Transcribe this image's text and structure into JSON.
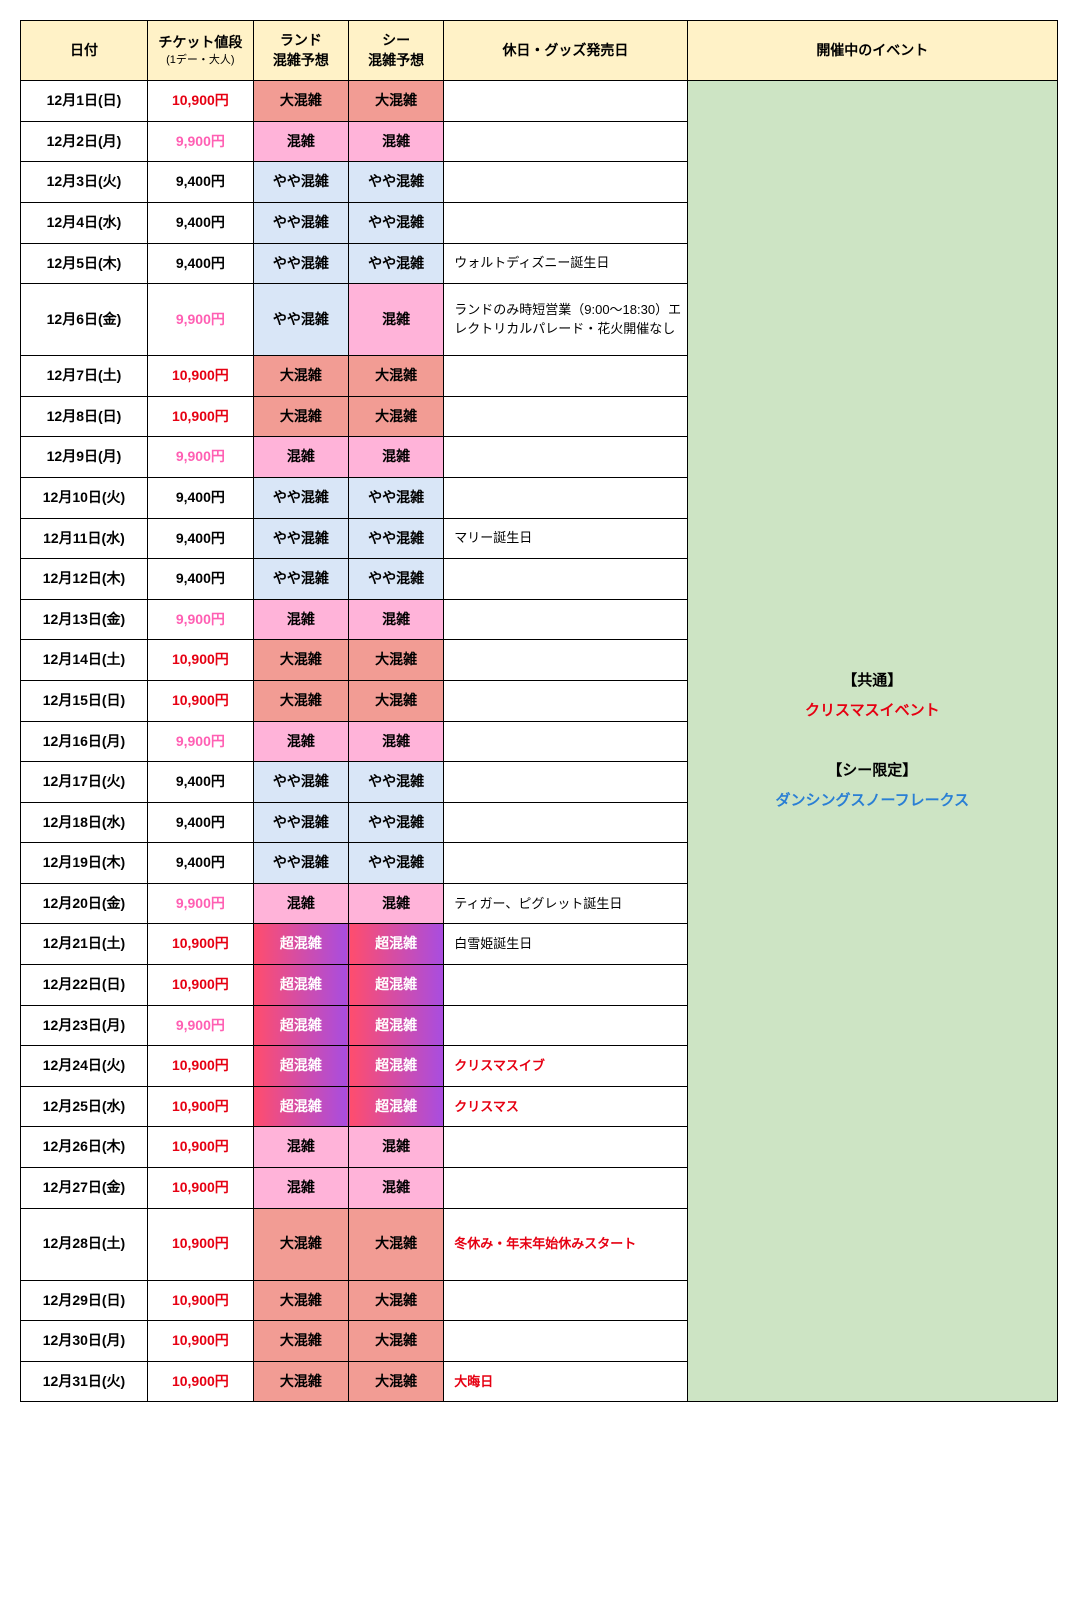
{
  "table": {
    "headers": {
      "date": "日付",
      "price": "チケット値段",
      "price_sub": "(1デー・大人)",
      "land": "ランド",
      "land_sub": "混雑予想",
      "sea": "シー",
      "sea_sub": "混雑予想",
      "holiday": "休日・グッズ発売日",
      "event": "開催中のイベント"
    },
    "crowd_labels": {
      "yaya": "やや混雑",
      "kon": "混雑",
      "dai": "大混雑",
      "cho": "超混雑"
    },
    "event_block": {
      "line1": "【共通】",
      "line2": "クリスマスイベント",
      "line3": "【シー限定】",
      "line4": "ダンシングスノーフレークス"
    },
    "rows": [
      {
        "date": "12月1日(日)",
        "price": "10,900円",
        "pcls": "price-red",
        "land": "dai",
        "sea": "dai",
        "holiday": "",
        "hred": false,
        "tall": false
      },
      {
        "date": "12月2日(月)",
        "price": "9,900円",
        "pcls": "price-pink",
        "land": "kon",
        "sea": "kon",
        "holiday": "",
        "hred": false,
        "tall": false
      },
      {
        "date": "12月3日(火)",
        "price": "9,400円",
        "pcls": "price-black",
        "land": "yaya",
        "sea": "yaya",
        "holiday": "",
        "hred": false,
        "tall": false
      },
      {
        "date": "12月4日(水)",
        "price": "9,400円",
        "pcls": "price-black",
        "land": "yaya",
        "sea": "yaya",
        "holiday": "",
        "hred": false,
        "tall": false
      },
      {
        "date": "12月5日(木)",
        "price": "9,400円",
        "pcls": "price-black",
        "land": "yaya",
        "sea": "yaya",
        "holiday": "ウォルトディズニー誕生日",
        "hred": false,
        "tall": false
      },
      {
        "date": "12月6日(金)",
        "price": "9,900円",
        "pcls": "price-pink",
        "land": "yaya",
        "sea": "kon",
        "holiday": "ランドのみ時短営業（9:00〜18:30）エレクトリカルパレード・花火開催なし",
        "hred": false,
        "tall": true
      },
      {
        "date": "12月7日(土)",
        "price": "10,900円",
        "pcls": "price-red",
        "land": "dai",
        "sea": "dai",
        "holiday": "",
        "hred": false,
        "tall": false
      },
      {
        "date": "12月8日(日)",
        "price": "10,900円",
        "pcls": "price-red",
        "land": "dai",
        "sea": "dai",
        "holiday": "",
        "hred": false,
        "tall": false
      },
      {
        "date": "12月9日(月)",
        "price": "9,900円",
        "pcls": "price-pink",
        "land": "kon",
        "sea": "kon",
        "holiday": "",
        "hred": false,
        "tall": false
      },
      {
        "date": "12月10日(火)",
        "price": "9,400円",
        "pcls": "price-black",
        "land": "yaya",
        "sea": "yaya",
        "holiday": "",
        "hred": false,
        "tall": false
      },
      {
        "date": "12月11日(水)",
        "price": "9,400円",
        "pcls": "price-black",
        "land": "yaya",
        "sea": "yaya",
        "holiday": "マリー誕生日",
        "hred": false,
        "tall": false
      },
      {
        "date": "12月12日(木)",
        "price": "9,400円",
        "pcls": "price-black",
        "land": "yaya",
        "sea": "yaya",
        "holiday": "",
        "hred": false,
        "tall": false
      },
      {
        "date": "12月13日(金)",
        "price": "9,900円",
        "pcls": "price-pink",
        "land": "kon",
        "sea": "kon",
        "holiday": "",
        "hred": false,
        "tall": false
      },
      {
        "date": "12月14日(土)",
        "price": "10,900円",
        "pcls": "price-red",
        "land": "dai",
        "sea": "dai",
        "holiday": "",
        "hred": false,
        "tall": false
      },
      {
        "date": "12月15日(日)",
        "price": "10,900円",
        "pcls": "price-red",
        "land": "dai",
        "sea": "dai",
        "holiday": "",
        "hred": false,
        "tall": false
      },
      {
        "date": "12月16日(月)",
        "price": "9,900円",
        "pcls": "price-pink",
        "land": "kon",
        "sea": "kon",
        "holiday": "",
        "hred": false,
        "tall": false
      },
      {
        "date": "12月17日(火)",
        "price": "9,400円",
        "pcls": "price-black",
        "land": "yaya",
        "sea": "yaya",
        "holiday": "",
        "hred": false,
        "tall": false
      },
      {
        "date": "12月18日(水)",
        "price": "9,400円",
        "pcls": "price-black",
        "land": "yaya",
        "sea": "yaya",
        "holiday": "",
        "hred": false,
        "tall": false
      },
      {
        "date": "12月19日(木)",
        "price": "9,400円",
        "pcls": "price-black",
        "land": "yaya",
        "sea": "yaya",
        "holiday": "",
        "hred": false,
        "tall": false
      },
      {
        "date": "12月20日(金)",
        "price": "9,900円",
        "pcls": "price-pink",
        "land": "kon",
        "sea": "kon",
        "holiday": "ティガー、ピグレット誕生日",
        "hred": false,
        "tall": false
      },
      {
        "date": "12月21日(土)",
        "price": "10,900円",
        "pcls": "price-red",
        "land": "cho",
        "sea": "cho",
        "holiday": "白雪姫誕生日",
        "hred": false,
        "tall": false
      },
      {
        "date": "12月22日(日)",
        "price": "10,900円",
        "pcls": "price-red",
        "land": "cho",
        "sea": "cho",
        "holiday": "",
        "hred": false,
        "tall": false
      },
      {
        "date": "12月23日(月)",
        "price": "9,900円",
        "pcls": "price-pink",
        "land": "cho",
        "sea": "cho",
        "holiday": "",
        "hred": false,
        "tall": false
      },
      {
        "date": "12月24日(火)",
        "price": "10,900円",
        "pcls": "price-red",
        "land": "cho",
        "sea": "cho",
        "holiday": "クリスマスイブ",
        "hred": true,
        "tall": false
      },
      {
        "date": "12月25日(水)",
        "price": "10,900円",
        "pcls": "price-red",
        "land": "cho",
        "sea": "cho",
        "holiday": "クリスマス",
        "hred": true,
        "tall": false
      },
      {
        "date": "12月26日(木)",
        "price": "10,900円",
        "pcls": "price-red",
        "land": "kon",
        "sea": "kon",
        "holiday": "",
        "hred": false,
        "tall": false
      },
      {
        "date": "12月27日(金)",
        "price": "10,900円",
        "pcls": "price-red",
        "land": "kon",
        "sea": "kon",
        "holiday": "",
        "hred": false,
        "tall": false
      },
      {
        "date": "12月28日(土)",
        "price": "10,900円",
        "pcls": "price-red",
        "land": "dai",
        "sea": "dai",
        "holiday": "冬休み・年末年始休みスタート",
        "hred": true,
        "tall": true
      },
      {
        "date": "12月29日(日)",
        "price": "10,900円",
        "pcls": "price-red",
        "land": "dai",
        "sea": "dai",
        "holiday": "",
        "hred": false,
        "tall": false
      },
      {
        "date": "12月30日(月)",
        "price": "10,900円",
        "pcls": "price-red",
        "land": "dai",
        "sea": "dai",
        "holiday": "",
        "hred": false,
        "tall": false
      },
      {
        "date": "12月31日(火)",
        "price": "10,900円",
        "pcls": "price-red",
        "land": "dai",
        "sea": "dai",
        "holiday": "大晦日",
        "hred": true,
        "tall": false
      }
    ]
  }
}
